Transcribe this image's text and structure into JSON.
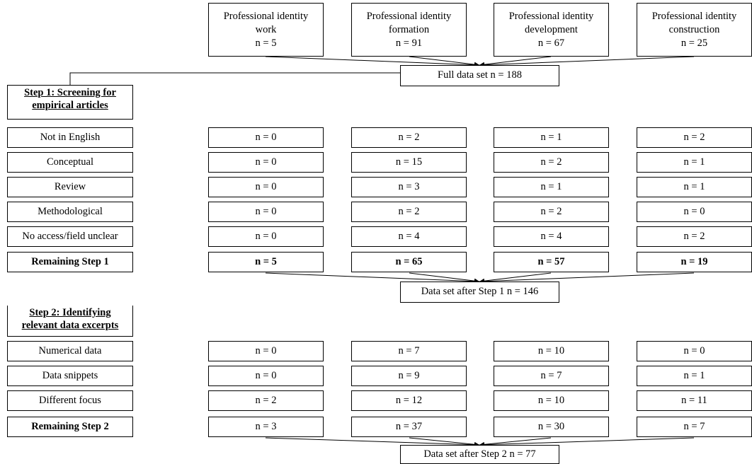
{
  "columns": [
    {
      "line1": "Professional identity",
      "line2": "work",
      "count": "n = 5"
    },
    {
      "line1": "Professional identity",
      "line2": "formation",
      "count": "n = 91"
    },
    {
      "line1": "Professional identity",
      "line2": "development",
      "count": "n = 67"
    },
    {
      "line1": "Professional identity",
      "line2": "construction",
      "count": "n = 25"
    }
  ],
  "full_set": "Full data set n = 188",
  "step1": {
    "title_line1": "Step 1: Screening for",
    "title_line2": "empirical articles",
    "rows": [
      {
        "label": "Not in English",
        "values": [
          "n = 0",
          "n = 2",
          "n = 1",
          "n = 2"
        ]
      },
      {
        "label": "Conceptual",
        "values": [
          "n = 0",
          "n = 15",
          "n = 2",
          "n = 1"
        ]
      },
      {
        "label": "Review",
        "values": [
          "n = 0",
          "n = 3",
          "n = 1",
          "n = 1"
        ]
      },
      {
        "label": "Methodological",
        "values": [
          "n = 0",
          "n = 2",
          "n = 2",
          "n = 0"
        ]
      },
      {
        "label": "No access/field unclear",
        "values": [
          "n = 0",
          "n = 4",
          "n = 4",
          "n = 2"
        ]
      }
    ],
    "remaining": {
      "label": "Remaining Step 1",
      "values": [
        "n = 5",
        "n = 65",
        "n = 57",
        "n = 19"
      ]
    },
    "result": "Data set after Step 1 n = 146"
  },
  "step2": {
    "title_line1": "Step 2: Identifying",
    "title_line2": "relevant data excerpts",
    "rows": [
      {
        "label": "Numerical data",
        "values": [
          "n = 0",
          "n = 7",
          "n = 10",
          "n = 0"
        ]
      },
      {
        "label": "Data snippets",
        "values": [
          "n = 0",
          "n = 9",
          "n = 7",
          "n = 1"
        ]
      },
      {
        "label": "Different focus",
        "values": [
          "n = 2",
          "n = 12",
          "n = 10",
          "n = 11"
        ]
      }
    ],
    "remaining": {
      "label": "Remaining Step 2",
      "values": [
        "n = 3",
        "n = 37",
        "n = 30",
        "n = 7"
      ]
    },
    "result": "Data set after Step 2 n = 77"
  }
}
